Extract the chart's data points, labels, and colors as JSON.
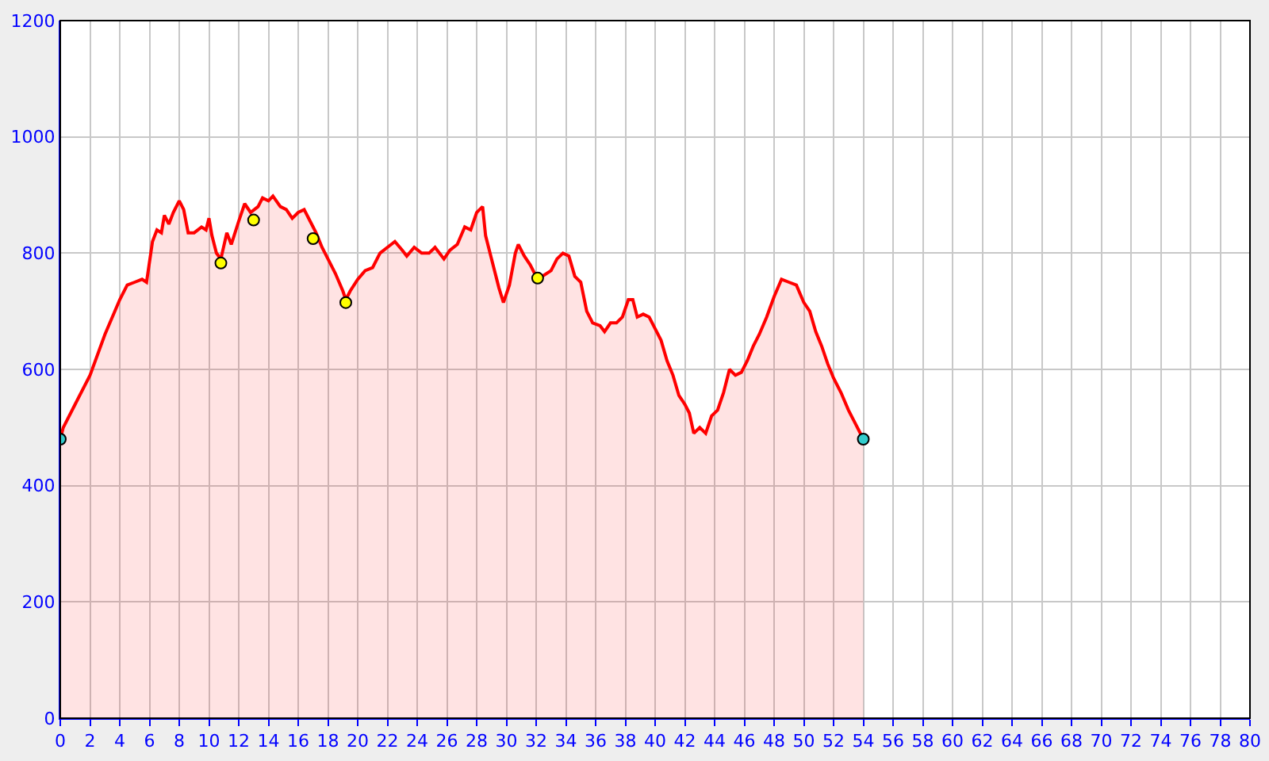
{
  "chart_data": {
    "type": "area",
    "xlim": [
      0,
      80
    ],
    "ylim": [
      0,
      1200
    ],
    "xticks": [
      0,
      2,
      4,
      6,
      8,
      10,
      12,
      14,
      16,
      18,
      20,
      22,
      24,
      26,
      28,
      30,
      32,
      34,
      36,
      38,
      40,
      42,
      44,
      46,
      48,
      50,
      52,
      54,
      56,
      58,
      60,
      62,
      64,
      66,
      68,
      70,
      72,
      74,
      76,
      78,
      80
    ],
    "yticks": [
      0,
      200,
      400,
      600,
      800,
      1000,
      1200
    ],
    "grid": true,
    "legend": false,
    "series": [
      {
        "color": "#ff0000",
        "x": [
          0,
          0.2,
          1,
          2,
          3,
          4,
          4.5,
          5,
          5.5,
          5.8,
          6.2,
          6.5,
          6.8,
          7,
          7.3,
          7.6,
          8,
          8.3,
          8.6,
          9,
          9.5,
          9.8,
          10,
          10.2,
          10.5,
          10.8,
          11.2,
          11.5,
          12,
          12.4,
          12.8,
          13.3,
          13.6,
          14,
          14.3,
          14.8,
          15.2,
          15.6,
          16,
          16.4,
          16.8,
          17.2,
          17.6,
          18,
          18.5,
          19,
          19.2,
          19.5,
          20,
          20.5,
          21,
          21.5,
          22,
          22.5,
          23,
          23.3,
          23.8,
          24.3,
          24.8,
          25.2,
          25.8,
          26.2,
          26.7,
          27.2,
          27.6,
          28,
          28.4,
          28.6,
          29,
          29.5,
          29.8,
          30.2,
          30.6,
          30.8,
          31.2,
          31.6,
          32,
          32.4,
          33,
          33.4,
          33.8,
          34.2,
          34.6,
          35,
          35.4,
          35.8,
          36.3,
          36.6,
          37,
          37.4,
          37.8,
          38.2,
          38.5,
          38.8,
          39.2,
          39.6,
          40,
          40.4,
          40.8,
          41.2,
          41.6,
          42,
          42.3,
          42.6,
          43,
          43.4,
          43.8,
          44.2,
          44.6,
          45,
          45.4,
          45.8,
          46.2,
          46.6,
          47,
          47.5,
          48,
          48.5,
          49,
          49.5,
          50,
          50.4,
          50.8,
          51.2,
          51.6,
          52,
          52.5,
          53,
          53.5,
          54
        ],
        "values": [
          480,
          500,
          540,
          590,
          660,
          720,
          745,
          750,
          755,
          750,
          820,
          840,
          835,
          865,
          850,
          870,
          890,
          875,
          835,
          835,
          845,
          840,
          860,
          830,
          800,
          790,
          835,
          815,
          855,
          885,
          870,
          880,
          895,
          890,
          898,
          880,
          875,
          860,
          870,
          875,
          855,
          835,
          810,
          790,
          765,
          735,
          720,
          735,
          755,
          770,
          775,
          800,
          810,
          820,
          805,
          795,
          810,
          800,
          800,
          810,
          790,
          805,
          815,
          845,
          840,
          870,
          880,
          830,
          790,
          740,
          715,
          745,
          800,
          815,
          795,
          780,
          760,
          760,
          770,
          790,
          800,
          795,
          760,
          750,
          700,
          680,
          675,
          665,
          680,
          680,
          690,
          720,
          720,
          690,
          695,
          690,
          670,
          650,
          615,
          590,
          555,
          540,
          525,
          490,
          500,
          490,
          520,
          530,
          560,
          600,
          590,
          595,
          615,
          640,
          660,
          690,
          725,
          755,
          750,
          745,
          715,
          700,
          665,
          640,
          610,
          585,
          560,
          530,
          505,
          480
        ]
      },
      {
        "type": "scatter",
        "color": "#33cccc",
        "marker": "circle",
        "x": [
          0,
          54
        ],
        "values": [
          480,
          480
        ]
      },
      {
        "type": "scatter",
        "color": "#ffff00",
        "marker": "circle",
        "x": [
          10.8,
          13,
          17,
          19.2,
          32.1
        ],
        "values": [
          783,
          857,
          825,
          715,
          757
        ]
      }
    ]
  }
}
